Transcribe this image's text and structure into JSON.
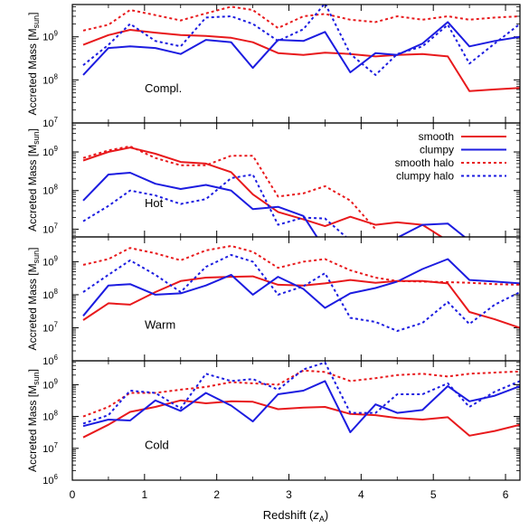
{
  "chart_data": {
    "type": "line",
    "xlabel": "Redshift (z_A)",
    "ylabel": "Accreted Mass [M_sun]",
    "xlim": [
      0,
      6.2
    ],
    "x_ticks": [
      "0",
      "1",
      "2",
      "3",
      "4",
      "5",
      "6"
    ],
    "yscale": "log",
    "grid": false,
    "legend": {
      "panel": "Hot",
      "placement": "top-right"
    },
    "colors": {
      "smooth": "#e8191c",
      "clumpy": "#1c1ce0"
    },
    "panels": [
      {
        "label": "Compl.",
        "ylim_log10": [
          7,
          9.75
        ],
        "y_ticks": [
          {
            "exp": 7,
            "text": "10",
            "sup": "7"
          },
          {
            "exp": 8,
            "text": "10",
            "sup": "8"
          },
          {
            "exp": 9,
            "text": "10",
            "sup": "9"
          }
        ],
        "series": [
          {
            "key": "smooth",
            "x": [
              0.15,
              0.5,
              0.8,
              1.15,
              1.5,
              1.85,
              2.2,
              2.5,
              2.85,
              3.2,
              3.5,
              3.85,
              4.2,
              4.5,
              4.85,
              5.2,
              5.5,
              5.85,
              6.2
            ],
            "y": [
              650000000.0,
              1100000000.0,
              1450000000.0,
              1250000000.0,
              1100000000.0,
              1050000000.0,
              950000000.0,
              750000000.0,
              420000000.0,
              380000000.0,
              430000000.0,
              400000000.0,
              350000000.0,
              380000000.0,
              400000000.0,
              350000000.0,
              55000000.0,
              60000000.0,
              65000000.0
            ]
          },
          {
            "key": "clumpy",
            "x": [
              0.15,
              0.5,
              0.8,
              1.15,
              1.5,
              1.85,
              2.2,
              2.5,
              2.85,
              3.2,
              3.5,
              3.85,
              4.2,
              4.5,
              4.85,
              5.2,
              5.5,
              5.85,
              6.2
            ],
            "y": [
              130000000.0,
              550000000.0,
              600000000.0,
              550000000.0,
              400000000.0,
              850000000.0,
              750000000.0,
              190000000.0,
              850000000.0,
              800000000.0,
              1300000000.0,
              150000000.0,
              420000000.0,
              380000000.0,
              700000000.0,
              2200000000.0,
              600000000.0,
              800000000.0,
              1000000000.0
            ]
          },
          {
            "key": "smooth halo",
            "x": [
              0.15,
              0.5,
              0.8,
              1.15,
              1.5,
              1.85,
              2.2,
              2.5,
              2.85,
              3.2,
              3.5,
              3.85,
              4.2,
              4.5,
              4.85,
              5.2,
              5.5,
              5.85,
              6.2
            ],
            "y": [
              1400000000.0,
              1900000000.0,
              4200000000.0,
              3200000000.0,
              2400000000.0,
              3500000000.0,
              5000000000.0,
              4200000000.0,
              1600000000.0,
              3000000000.0,
              3400000000.0,
              2500000000.0,
              2200000000.0,
              3000000000.0,
              2500000000.0,
              3000000000.0,
              2500000000.0,
              2800000000.0,
              3000000000.0
            ]
          },
          {
            "key": "clumpy halo",
            "x": [
              0.15,
              0.5,
              0.8,
              1.15,
              1.5,
              1.85,
              2.2,
              2.5,
              2.85,
              3.2,
              3.5,
              3.85,
              4.2,
              4.5,
              4.85,
              5.2,
              5.5,
              5.85,
              6.2
            ],
            "y": [
              220000000.0,
              650000000.0,
              2000000000.0,
              800000000.0,
              600000000.0,
              2800000000.0,
              3000000000.0,
              2000000000.0,
              800000000.0,
              1500000000.0,
              6000000000.0,
              400000000.0,
              130000000.0,
              400000000.0,
              600000000.0,
              1900000000.0,
              240000000.0,
              700000000.0,
              2000000000.0
            ]
          }
        ]
      },
      {
        "label": "Hot",
        "ylim_log10": [
          6.8,
          9.75
        ],
        "y_ticks": [
          {
            "exp": 7,
            "text": "10",
            "sup": "7"
          },
          {
            "exp": 8,
            "text": "10",
            "sup": "8"
          },
          {
            "exp": 9,
            "text": "10",
            "sup": "9"
          }
        ],
        "series": [
          {
            "key": "smooth",
            "x": [
              0.15,
              0.5,
              0.8,
              1.15,
              1.5,
              1.85,
              2.2,
              2.5,
              2.85,
              3.2,
              3.5,
              3.85,
              4.2,
              4.5,
              4.85,
              5.2
            ],
            "y": [
              600000000.0,
              1000000000.0,
              1300000000.0,
              900000000.0,
              550000000.0,
              500000000.0,
              300000000.0,
              80000000.0,
              28000000.0,
              18000000.0,
              12000000.0,
              21000000.0,
              13000000.0,
              15000000.0,
              13000000.0,
              5000000.0
            ]
          },
          {
            "key": "clumpy",
            "x": [
              0.15,
              0.5,
              0.8,
              1.15,
              1.5,
              1.85,
              2.2,
              2.5,
              2.85,
              3.2,
              3.5,
              3.85,
              4.2,
              4.5,
              4.85,
              5.2,
              5.5
            ],
            "y": [
              55000000.0,
              260000000.0,
              290000000.0,
              150000000.0,
              110000000.0,
              140000000.0,
              100000000.0,
              33000000.0,
              38000000.0,
              22000000.0,
              3000000.0,
              3000000.0,
              3000000.0,
              6000000.0,
              13000000.0,
              14000000.0,
              5000000.0
            ]
          },
          {
            "key": "smooth halo",
            "x": [
              0.15,
              0.5,
              0.8,
              1.15,
              1.5,
              1.85,
              2.2,
              2.5,
              2.85,
              3.2,
              3.5,
              3.85,
              4.2
            ],
            "y": [
              700000000.0,
              1100000000.0,
              1400000000.0,
              700000000.0,
              450000000.0,
              450000000.0,
              800000000.0,
              800000000.0,
              70000000.0,
              85000000.0,
              130000000.0,
              55000000.0,
              10000000.0
            ]
          },
          {
            "key": "clumpy halo",
            "x": [
              0.15,
              0.5,
              0.8,
              1.15,
              1.5,
              1.85,
              2.2,
              2.5,
              2.85,
              3.2,
              3.5,
              3.85
            ],
            "y": [
              16000000.0,
              40000000.0,
              100000000.0,
              75000000.0,
              45000000.0,
              60000000.0,
              210000000.0,
              260000000.0,
              13000000.0,
              20000000.0,
              19000000.0,
              5000000.0
            ]
          }
        ]
      },
      {
        "label": "Warm",
        "ylim_log10": [
          6,
          9.75
        ],
        "y_ticks": [
          {
            "exp": 6,
            "text": "10",
            "sup": "6"
          },
          {
            "exp": 7,
            "text": "10",
            "sup": "7"
          },
          {
            "exp": 8,
            "text": "10",
            "sup": "8"
          },
          {
            "exp": 9,
            "text": "10",
            "sup": "9"
          }
        ],
        "series": [
          {
            "key": "smooth",
            "x": [
              0.15,
              0.5,
              0.8,
              1.15,
              1.5,
              1.85,
              2.2,
              2.5,
              2.85,
              3.2,
              3.5,
              3.85,
              4.2,
              4.5,
              4.85,
              5.2,
              5.5,
              5.85,
              6.2
            ],
            "y": [
              17000000.0,
              55000000.0,
              50000000.0,
              120000000.0,
              260000000.0,
              330000000.0,
              350000000.0,
              360000000.0,
              200000000.0,
              190000000.0,
              220000000.0,
              280000000.0,
              230000000.0,
              260000000.0,
              260000000.0,
              220000000.0,
              30000000.0,
              18000000.0,
              10000000.0
            ]
          },
          {
            "key": "clumpy",
            "x": [
              0.15,
              0.5,
              0.8,
              1.15,
              1.5,
              1.85,
              2.2,
              2.5,
              2.85,
              3.2,
              3.5,
              3.85,
              4.2,
              4.5,
              4.85,
              5.2,
              5.5,
              5.85,
              6.2
            ],
            "y": [
              23000000.0,
              190000000.0,
              210000000.0,
              100000000.0,
              110000000.0,
              190000000.0,
              400000000.0,
              100000000.0,
              350000000.0,
              150000000.0,
              40000000.0,
              110000000.0,
              160000000.0,
              250000000.0,
              600000000.0,
              1200000000.0,
              280000000.0,
              250000000.0,
              220000000.0
            ]
          },
          {
            "key": "smooth halo",
            "x": [
              0.15,
              0.5,
              0.8,
              1.15,
              1.5,
              1.85,
              2.2,
              2.5,
              2.85,
              3.2,
              3.5,
              3.85,
              4.2,
              4.5,
              4.85,
              5.2,
              5.5,
              5.85,
              6.2
            ],
            "y": [
              800000000.0,
              1200000000.0,
              2600000000.0,
              1800000000.0,
              1100000000.0,
              2200000000.0,
              3000000000.0,
              2000000000.0,
              650000000.0,
              1000000000.0,
              1200000000.0,
              550000000.0,
              330000000.0,
              260000000.0,
              250000000.0,
              240000000.0,
              230000000.0,
              210000000.0,
              200000000.0
            ]
          },
          {
            "key": "clumpy halo",
            "x": [
              0.15,
              0.5,
              0.8,
              1.15,
              1.5,
              1.85,
              2.2,
              2.5,
              2.85,
              3.2,
              3.5,
              3.85,
              4.2,
              4.5,
              4.85,
              5.2,
              5.5,
              5.85,
              6.2
            ],
            "y": [
              120000000.0,
              400000000.0,
              1100000000.0,
              400000000.0,
              120000000.0,
              700000000.0,
              1600000000.0,
              1000000000.0,
              100000000.0,
              180000000.0,
              450000000.0,
              20000000.0,
              15000000.0,
              8000000.0,
              14000000.0,
              60000000.0,
              13000000.0,
              50000000.0,
              120000000.0
            ]
          }
        ]
      },
      {
        "label": "Cold",
        "ylim_log10": [
          6,
          9.75
        ],
        "y_ticks": [
          {
            "exp": 6,
            "text": "10",
            "sup": "6"
          },
          {
            "exp": 7,
            "text": "10",
            "sup": "7"
          },
          {
            "exp": 8,
            "text": "10",
            "sup": "8"
          },
          {
            "exp": 9,
            "text": "10",
            "sup": "9"
          }
        ],
        "series": [
          {
            "key": "smooth",
            "x": [
              0.15,
              0.5,
              0.8,
              1.15,
              1.5,
              1.85,
              2.2,
              2.5,
              2.85,
              3.2,
              3.5,
              3.85,
              4.2,
              4.5,
              4.85,
              5.2,
              5.5,
              5.85,
              6.2
            ],
            "y": [
              22000000.0,
              55000000.0,
              140000000.0,
              200000000.0,
              320000000.0,
              260000000.0,
              300000000.0,
              290000000.0,
              170000000.0,
              190000000.0,
              200000000.0,
              120000000.0,
              110000000.0,
              90000000.0,
              80000000.0,
              95000000.0,
              25000000.0,
              35000000.0,
              55000000.0
            ]
          },
          {
            "key": "clumpy",
            "x": [
              0.15,
              0.5,
              0.8,
              1.15,
              1.5,
              1.85,
              2.2,
              2.5,
              2.85,
              3.2,
              3.5,
              3.85,
              4.2,
              4.5,
              4.85,
              5.2,
              5.5,
              5.85,
              6.2
            ],
            "y": [
              50000000.0,
              80000000.0,
              75000000.0,
              320000000.0,
              150000000.0,
              550000000.0,
              220000000.0,
              70000000.0,
              500000000.0,
              650000000.0,
              1300000000.0,
              32000000.0,
              240000000.0,
              130000000.0,
              160000000.0,
              900000000.0,
              300000000.0,
              450000000.0,
              900000000.0
            ]
          },
          {
            "key": "smooth halo",
            "x": [
              0.15,
              0.5,
              0.8,
              1.15,
              1.5,
              1.85,
              2.2,
              2.5,
              2.85,
              3.2,
              3.5,
              3.85,
              4.2,
              4.5,
              4.85,
              5.2,
              5.5,
              5.85,
              6.2
            ],
            "y": [
              100000000.0,
              200000000.0,
              550000000.0,
              550000000.0,
              700000000.0,
              850000000.0,
              1200000000.0,
              1100000000.0,
              1000000000.0,
              2800000000.0,
              2500000000.0,
              1300000000.0,
              1600000000.0,
              2000000000.0,
              2200000000.0,
              1800000000.0,
              2200000000.0,
              2400000000.0,
              2600000000.0
            ]
          },
          {
            "key": "clumpy halo",
            "x": [
              0.15,
              0.5,
              0.8,
              1.15,
              1.5,
              1.85,
              2.2,
              2.5,
              2.85,
              3.2,
              3.5,
              3.85,
              4.2,
              4.5,
              4.85,
              5.2,
              5.5,
              5.85,
              6.2
            ],
            "y": [
              60000000.0,
              110000000.0,
              650000000.0,
              550000000.0,
              180000000.0,
              2200000000.0,
              1300000000.0,
              1500000000.0,
              700000000.0,
              3000000000.0,
              5000000000.0,
              130000000.0,
              130000000.0,
              500000000.0,
              500000000.0,
              1100000000.0,
              200000000.0,
              600000000.0,
              1300000000.0
            ]
          }
        ]
      }
    ]
  },
  "legend": {
    "smooth": "smooth",
    "clumpy": "clumpy",
    "smooth_halo": "smooth halo",
    "clumpy_halo": "clumpy halo"
  },
  "axes": {
    "ylabel_main": "Accreted Mass [M",
    "ylabel_sub": "sun",
    "ylabel_end": "]",
    "xlabel_main": "Redshift (",
    "xlabel_italic": "z",
    "xlabel_sub": "A",
    "xlabel_end": ")"
  }
}
